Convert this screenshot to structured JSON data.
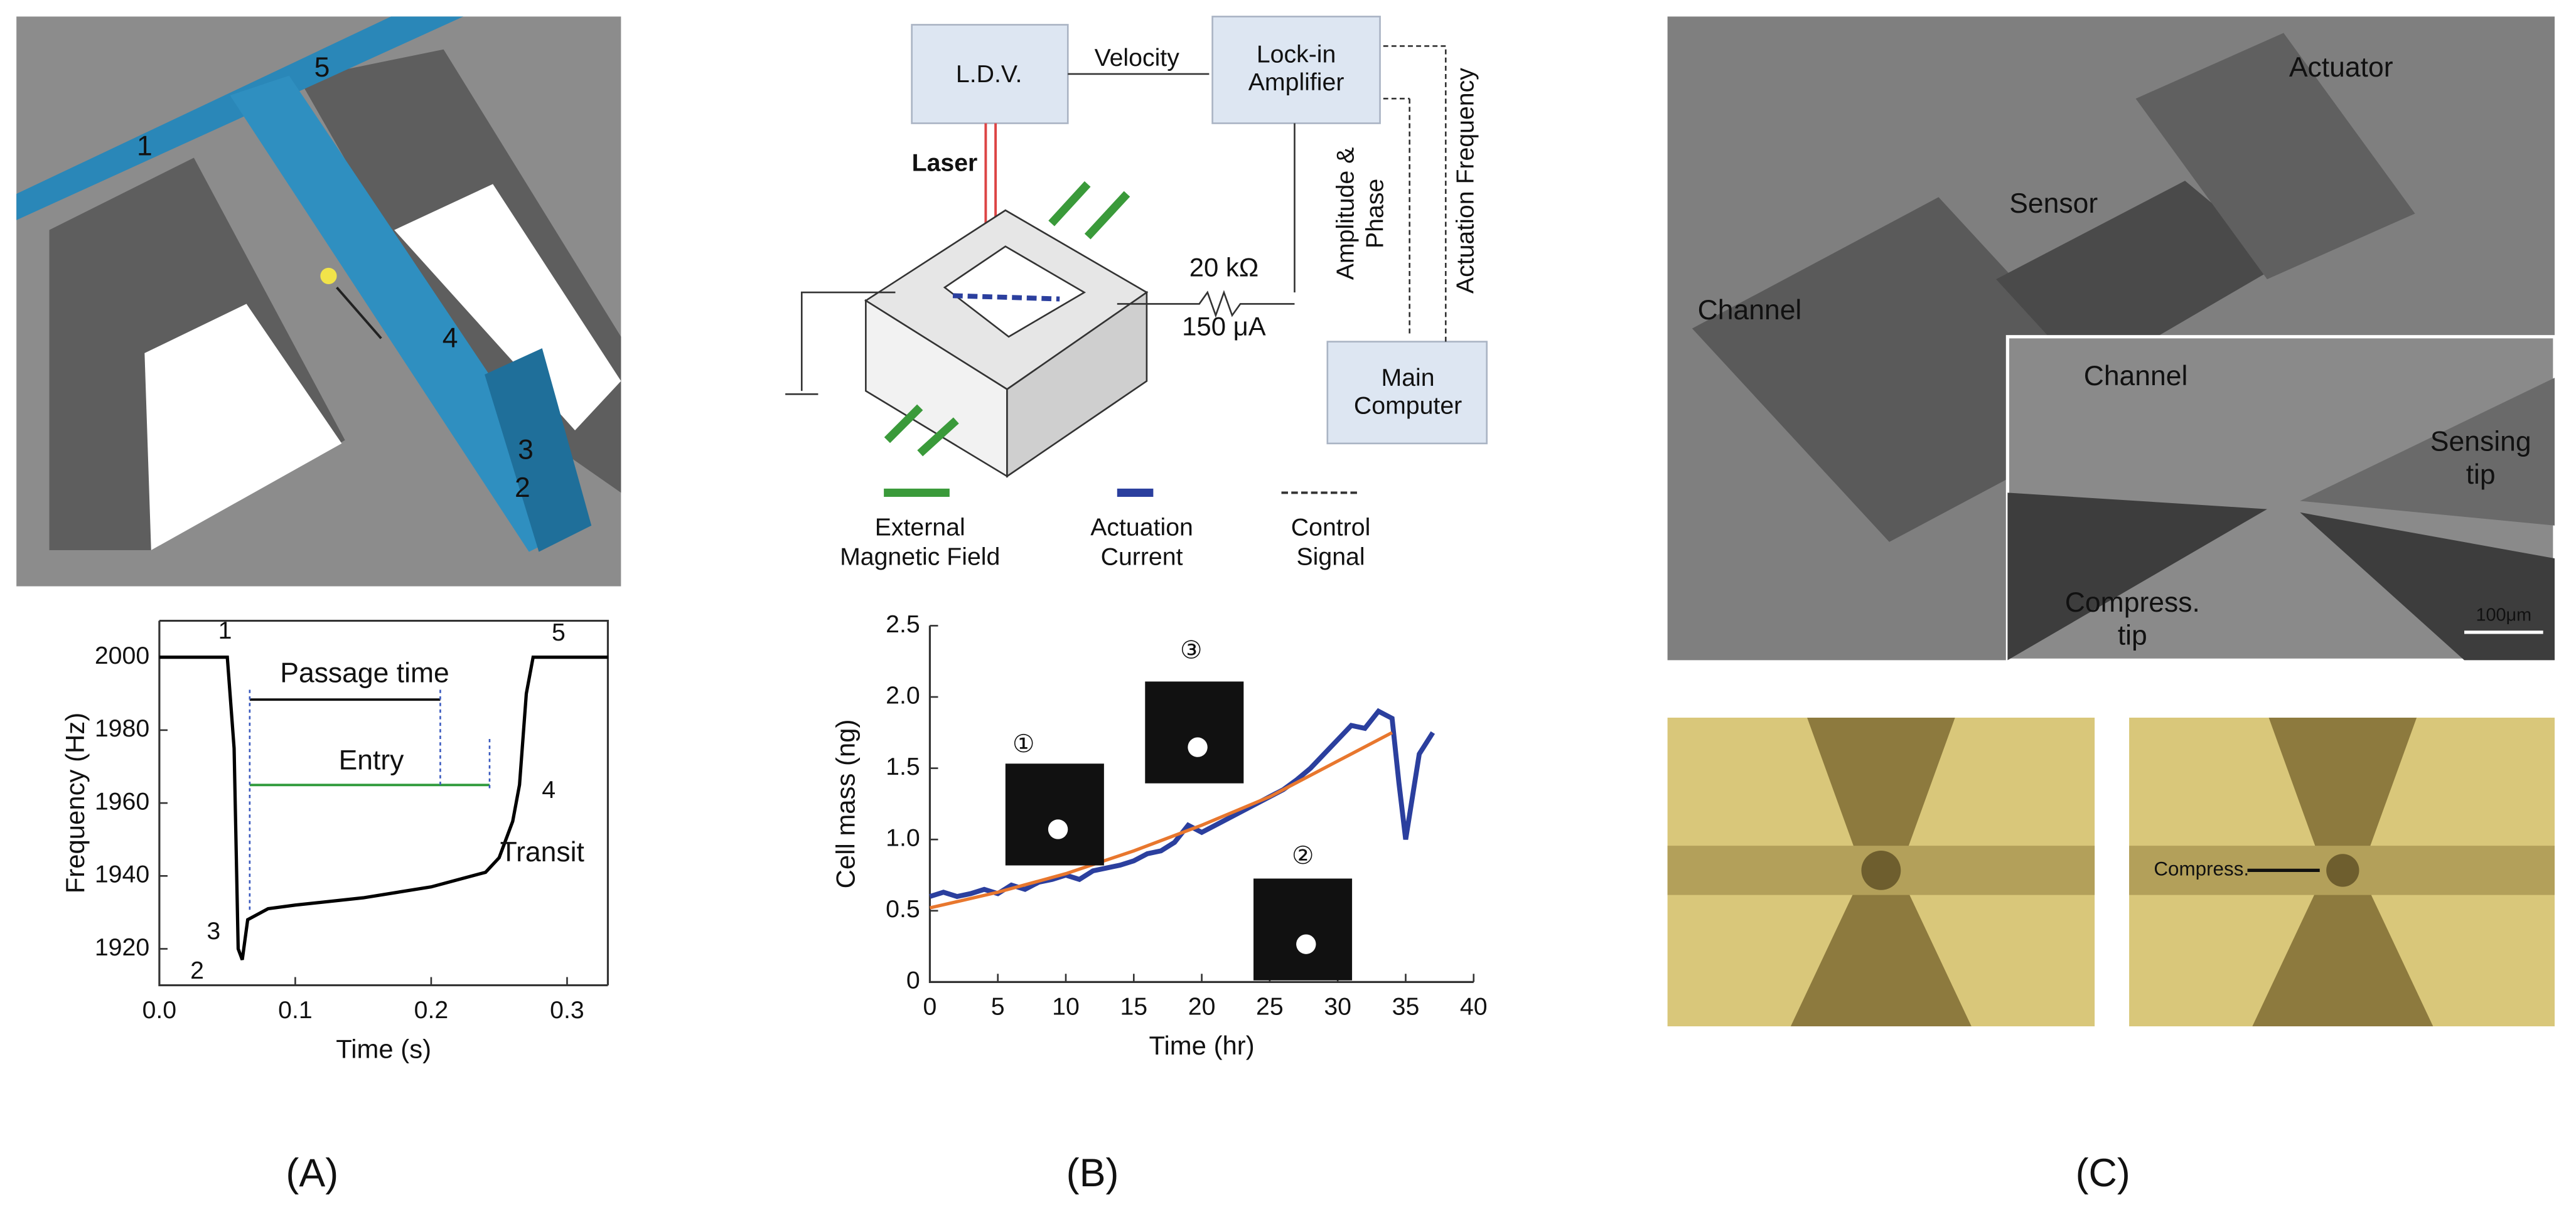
{
  "chart_data": [
    {
      "type": "line",
      "x_label": "Time (s)",
      "y_label": "Frequency (Hz)",
      "xlim": [
        0,
        0.33
      ],
      "xticks": [
        {
          "value": 0,
          "label": "0.0"
        },
        0.1,
        0.2,
        0.3
      ],
      "ylim": [
        1910,
        2010
      ],
      "yticks": [
        1920,
        1940,
        1960,
        1980,
        2000
      ],
      "series": [
        {
          "color": "#000000",
          "x": [
            0,
            0.05,
            0.055,
            0.058,
            0.061,
            0.065,
            0.08,
            0.1,
            0.15,
            0.2,
            0.24,
            0.25,
            0.26,
            0.265,
            0.27,
            0.275,
            0.33
          ],
          "values": [
            2000,
            2000,
            1975,
            1920,
            1917,
            1928,
            1931,
            1932,
            1934,
            1937,
            1941,
            1945,
            1955,
            1965,
            1990,
            2000,
            2000
          ]
        }
      ],
      "annotations": [
        "1",
        "2",
        "3",
        "4",
        "5",
        "Passage time",
        "Entry",
        "Transit"
      ]
    },
    {
      "type": "line",
      "x_label": "Time (hr)",
      "y_label": "Cell mass (ng)",
      "xlim": [
        0,
        40
      ],
      "xticks": [
        0,
        5,
        10,
        15,
        20,
        25,
        30,
        35,
        40
      ],
      "ylim": [
        0,
        2.5
      ],
      "yticks": [
        0,
        0.5,
        {
          "value": 1,
          "label": "1.0"
        },
        1.5,
        {
          "value": 2,
          "label": "2.0"
        },
        2.5
      ],
      "series": [
        {
          "color": "#2b3f9e",
          "x": [
            0,
            1,
            2,
            3,
            4,
            5,
            6,
            7,
            8,
            9,
            10,
            11,
            12,
            13,
            14,
            15,
            16,
            17,
            18,
            19,
            20,
            21,
            22,
            23,
            24,
            25,
            26,
            27,
            28,
            29,
            30,
            31,
            32,
            33,
            34,
            34.5,
            35,
            36,
            37
          ],
          "values": [
            0.6,
            0.63,
            0.6,
            0.62,
            0.65,
            0.62,
            0.68,
            0.65,
            0.7,
            0.72,
            0.75,
            0.72,
            0.78,
            0.8,
            0.82,
            0.85,
            0.9,
            0.92,
            0.98,
            1.1,
            1.05,
            1.1,
            1.15,
            1.2,
            1.25,
            1.3,
            1.35,
            1.42,
            1.5,
            1.6,
            1.7,
            1.8,
            1.78,
            1.9,
            1.85,
            1.4,
            1.0,
            1.6,
            1.75
          ]
        },
        {
          "color": "#e8772e",
          "x": [
            0,
            5,
            10,
            15,
            20,
            25,
            30,
            34
          ],
          "values": [
            0.52,
            0.63,
            0.76,
            0.92,
            1.1,
            1.3,
            1.55,
            1.75
          ]
        }
      ],
      "annotations": [
        "①",
        "②",
        "③"
      ]
    }
  ],
  "panel_labels": [
    "(A)",
    "(B)",
    "(C)"
  ],
  "panel_a_diagram": {
    "labels": [
      "1",
      "5",
      "4",
      "3",
      "2"
    ]
  },
  "panel_b_diagram": {
    "ldv": "L.D.V.",
    "velocity": "Velocity",
    "lock_in": [
      "Lock-in",
      "Amplifier"
    ],
    "laser": "Laser",
    "resistance": "20 kΩ",
    "current": "150 μA",
    "amplitude_phase": [
      "Amplitude &",
      "Phase"
    ],
    "actuation_frequency": "Actuation Frequency",
    "main_computer": [
      "Main",
      "Computer"
    ],
    "legend": [
      [
        "External",
        "Magnetic Field"
      ],
      [
        "Actuation",
        "Current"
      ],
      [
        "Control",
        "Signal"
      ]
    ]
  },
  "panel_c": {
    "sem_labels": [
      "Channel",
      "Sensor",
      "Actuator"
    ],
    "inset_labels": [
      [
        "Channel"
      ],
      [
        "Sensing",
        "tip"
      ],
      [
        "Compress.",
        "tip"
      ]
    ],
    "scale_bar": "100μm",
    "optical_label": "Compress."
  }
}
